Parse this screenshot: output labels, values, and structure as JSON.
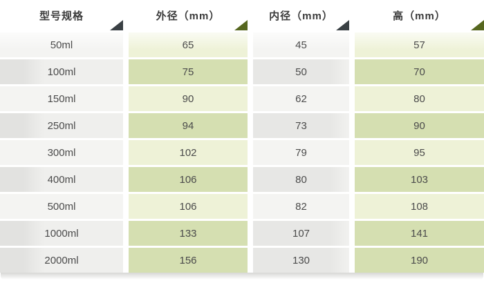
{
  "theme": {
    "green_light": "#eef2d7",
    "green_dark": "#d5dfb1",
    "gray_light": "#f4f4f2",
    "gray_dark": "#e7e7e5",
    "triangle_dark": "#3a4044",
    "triangle_olive": "#56671f",
    "header_text": "#3b3b3b",
    "cell_text": "#4b4b4b"
  },
  "table": {
    "columns": [
      {
        "label": "型号规格",
        "marker": "dark-triangle-icon"
      },
      {
        "label": "外径（mm）",
        "marker": "olive-triangle-icon"
      },
      {
        "label": "内径（mm）",
        "marker": "dark-triangle-icon"
      },
      {
        "label": "高（mm）",
        "marker": "olive-triangle-icon"
      }
    ],
    "rows": [
      {
        "model": "50ml",
        "outer": "65",
        "inner": "45",
        "height": "57"
      },
      {
        "model": "100ml",
        "outer": "75",
        "inner": "50",
        "height": "70"
      },
      {
        "model": "150ml",
        "outer": "90",
        "inner": "62",
        "height": "80"
      },
      {
        "model": "250ml",
        "outer": "94",
        "inner": "73",
        "height": "90"
      },
      {
        "model": "300ml",
        "outer": "102",
        "inner": "79",
        "height": "95"
      },
      {
        "model": "400ml",
        "outer": "106",
        "inner": "80",
        "height": "103"
      },
      {
        "model": "500ml",
        "outer": "106",
        "inner": "82",
        "height": "108"
      },
      {
        "model": "1000ml",
        "outer": "133",
        "inner": "107",
        "height": "141"
      },
      {
        "model": "2000ml",
        "outer": "156",
        "inner": "130",
        "height": "190"
      }
    ]
  }
}
